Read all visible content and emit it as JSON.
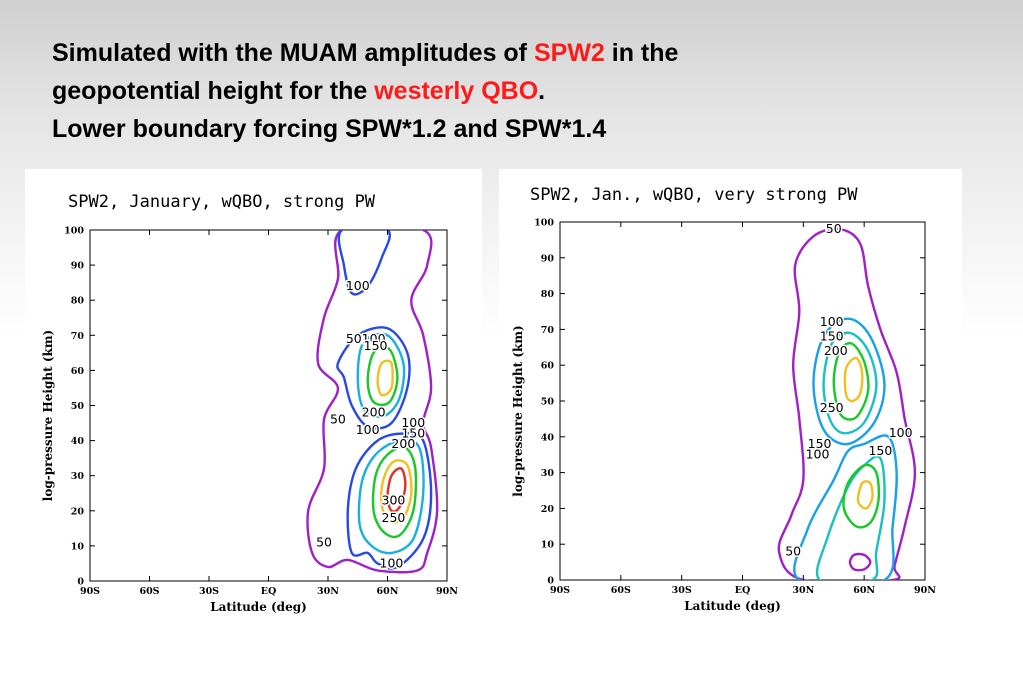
{
  "slide": {
    "title_line1_a": "Simulated with the MUAM amplitudes of ",
    "title_line1_b": "SPW2",
    "title_line1_c": " in the",
    "title_line2_a": "geopotential height for the ",
    "title_line2_b": "westerly QBO",
    "title_line2_c": ".",
    "title_line3": "Lower boundary forcing SPW*1.2 and SPW*1.4",
    "highlight_color": "#ff1a1a"
  },
  "chart_data": [
    {
      "type": "contour",
      "title": "SPW2, January, wQBO, strong PW",
      "xlabel": "Latitude (deg)",
      "ylabel": "log-pressure Height (km)",
      "x_ticks": [
        "90S",
        "60S",
        "30S",
        "EQ",
        "30N",
        "60N",
        "90N"
      ],
      "y_ticks": [
        "0",
        "10",
        "20",
        "30",
        "40",
        "50",
        "60",
        "70",
        "80",
        "90",
        "100"
      ],
      "xlim": [
        -90,
        90
      ],
      "ylim": [
        0,
        100
      ],
      "levels": [
        50,
        100,
        150,
        200,
        250,
        300
      ],
      "level_colors": {
        "50": "#a020c8",
        "100": "#2848e8",
        "150": "#18b0e0",
        "200": "#18c828",
        "250": "#f0c020",
        "300": "#e03020"
      },
      "contours": [
        {
          "level": 50,
          "points": [
            [
              22,
              8
            ],
            [
              20,
              20
            ],
            [
              28,
              32
            ],
            [
              28,
              46
            ],
            [
              35,
              55
            ],
            [
              25,
              62
            ],
            [
              28,
              75
            ],
            [
              35,
              86
            ],
            [
              37,
              100
            ],
            [
              78,
              100
            ],
            [
              80,
              90
            ],
            [
              72,
              80
            ],
            [
              78,
              70
            ],
            [
              82,
              55
            ],
            [
              78,
              45
            ],
            [
              82,
              38
            ],
            [
              85,
              20
            ],
            [
              80,
              8
            ],
            [
              75,
              3
            ],
            [
              55,
              3
            ],
            [
              40,
              6
            ],
            [
              30,
              4
            ]
          ]
        },
        {
          "level": 100,
          "points": [
            [
              37,
              100
            ],
            [
              38,
              90
            ],
            [
              42,
              82
            ],
            [
              50,
              84
            ],
            [
              57,
              92
            ],
            [
              60,
              100
            ]
          ]
        },
        {
          "level": 100,
          "points": [
            [
              38,
              58
            ],
            [
              35,
              62
            ],
            [
              45,
              70
            ],
            [
              60,
              72
            ],
            [
              70,
              65
            ],
            [
              70,
              55
            ],
            [
              62,
              45
            ],
            [
              50,
              44
            ],
            [
              42,
              50
            ]
          ]
        },
        {
          "level": 100,
          "points": [
            [
              42,
              8
            ],
            [
              40,
              20
            ],
            [
              44,
              32
            ],
            [
              55,
              40
            ],
            [
              68,
              42
            ],
            [
              78,
              40
            ],
            [
              82,
              25
            ],
            [
              78,
              12
            ],
            [
              65,
              4
            ],
            [
              55,
              5
            ],
            [
              50,
              8
            ]
          ]
        },
        {
          "level": 150,
          "points": [
            [
              45,
              58
            ],
            [
              48,
              68
            ],
            [
              60,
              70
            ],
            [
              68,
              62
            ],
            [
              66,
              52
            ],
            [
              58,
              47
            ],
            [
              48,
              49
            ]
          ]
        },
        {
          "level": 150,
          "points": [
            [
              46,
              16
            ],
            [
              47,
              28
            ],
            [
              54,
              36
            ],
            [
              66,
              40
            ],
            [
              76,
              38
            ],
            [
              78,
              25
            ],
            [
              73,
              12
            ],
            [
              62,
              8
            ],
            [
              52,
              10
            ]
          ]
        },
        {
          "level": 200,
          "points": [
            [
              50,
              57
            ],
            [
              53,
              65
            ],
            [
              61,
              66
            ],
            [
              65,
              58
            ],
            [
              61,
              51
            ],
            [
              53,
              51
            ]
          ]
        },
        {
          "level": 200,
          "points": [
            [
              53,
              20
            ],
            [
              54,
              30
            ],
            [
              60,
              36
            ],
            [
              69,
              38
            ],
            [
              74,
              32
            ],
            [
              73,
              20
            ],
            [
              66,
              13
            ],
            [
              58,
              14
            ]
          ]
        },
        {
          "level": 250,
          "points": [
            [
              55,
              57
            ],
            [
              57,
              62
            ],
            [
              62,
              62
            ],
            [
              62,
              55
            ],
            [
              57,
              53
            ]
          ]
        },
        {
          "level": 250,
          "points": [
            [
              57,
              22
            ],
            [
              58,
              29
            ],
            [
              63,
              34
            ],
            [
              70,
              33
            ],
            [
              72,
              25
            ],
            [
              68,
              18
            ],
            [
              61,
              17
            ]
          ]
        },
        {
          "level": 300,
          "points": [
            [
              60,
              24
            ],
            [
              62,
              30
            ],
            [
              67,
              32
            ],
            [
              69,
              27
            ],
            [
              66,
              21
            ],
            [
              62,
              20
            ]
          ]
        }
      ],
      "labels": [
        {
          "text": "100",
          "x": 45,
          "y": 84
        },
        {
          "text": "50",
          "x": 43,
          "y": 69
        },
        {
          "text": "100",
          "x": 53,
          "y": 69
        },
        {
          "text": "150",
          "x": 54,
          "y": 67
        },
        {
          "text": "50",
          "x": 35,
          "y": 46
        },
        {
          "text": "200",
          "x": 53,
          "y": 48
        },
        {
          "text": "100",
          "x": 50,
          "y": 43
        },
        {
          "text": "100",
          "x": 73,
          "y": 45
        },
        {
          "text": "150",
          "x": 73,
          "y": 42
        },
        {
          "text": "200",
          "x": 68,
          "y": 39
        },
        {
          "text": "300",
          "x": 63,
          "y": 23
        },
        {
          "text": "250",
          "x": 63,
          "y": 18
        },
        {
          "text": "50",
          "x": 28,
          "y": 11
        },
        {
          "text": "100",
          "x": 62,
          "y": 5
        }
      ]
    },
    {
      "type": "contour",
      "title": "SPW2, Jan., wQBO, very strong PW",
      "xlabel": "Latitude (deg)",
      "ylabel": "log-pressure Height (km)",
      "x_ticks": [
        "90S",
        "60S",
        "30S",
        "EQ",
        "30N",
        "60N",
        "90N"
      ],
      "y_ticks": [
        "0",
        "10",
        "20",
        "30",
        "40",
        "50",
        "60",
        "70",
        "80",
        "90",
        "100"
      ],
      "xlim": [
        -90,
        90
      ],
      "ylim": [
        0,
        100
      ],
      "levels": [
        50,
        100,
        150,
        200,
        250
      ],
      "level_colors": {
        "50": "#a020c8",
        "100": "#18a0e8",
        "150": "#18c0c0",
        "200": "#18c828",
        "250": "#f0c020",
        "300": "#e03020"
      },
      "contours": [
        {
          "level": 50,
          "points": [
            [
              30,
              0
            ],
            [
              18,
              8
            ],
            [
              24,
              18
            ],
            [
              30,
              28
            ],
            [
              28,
              45
            ],
            [
              25,
              60
            ],
            [
              28,
              75
            ],
            [
              26,
              88
            ],
            [
              35,
              96
            ],
            [
              48,
              98
            ],
            [
              58,
              94
            ],
            [
              62,
              82
            ],
            [
              68,
              70
            ],
            [
              76,
              58
            ],
            [
              80,
              45
            ],
            [
              85,
              30
            ],
            [
              80,
              15
            ],
            [
              75,
              4
            ],
            [
              74,
              0
            ]
          ]
        },
        {
          "level": 100,
          "points": [
            [
              28,
              0
            ],
            [
              32,
              14
            ],
            [
              45,
              28
            ],
            [
              52,
              36
            ],
            [
              60,
              38
            ],
            [
              72,
              40
            ],
            [
              76,
              30
            ],
            [
              74,
              15
            ],
            [
              70,
              0
            ]
          ]
        },
        {
          "level": 100,
          "points": [
            [
              40,
              42
            ],
            [
              35,
              55
            ],
            [
              40,
              68
            ],
            [
              52,
              73
            ],
            [
              63,
              68
            ],
            [
              70,
              55
            ],
            [
              65,
              44
            ],
            [
              52,
              38
            ]
          ]
        },
        {
          "level": 150,
          "points": [
            [
              43,
              45
            ],
            [
              40,
              55
            ],
            [
              44,
              66
            ],
            [
              53,
              69
            ],
            [
              62,
              64
            ],
            [
              66,
              54
            ],
            [
              60,
              44
            ],
            [
              50,
              41
            ]
          ]
        },
        {
          "level": 150,
          "points": [
            [
              38,
              0
            ],
            [
              42,
              12
            ],
            [
              52,
              26
            ],
            [
              60,
              32
            ],
            [
              68,
              34
            ],
            [
              70,
              22
            ],
            [
              66,
              8
            ],
            [
              64,
              0
            ]
          ]
        },
        {
          "level": 200,
          "points": [
            [
              47,
              48
            ],
            [
              45,
              56
            ],
            [
              48,
              64
            ],
            [
              54,
              66
            ],
            [
              60,
              61
            ],
            [
              62,
              53
            ],
            [
              57,
              46
            ],
            [
              51,
              45
            ]
          ]
        },
        {
          "level": 200,
          "points": [
            [
              50,
              20
            ],
            [
              52,
              27
            ],
            [
              60,
              32
            ],
            [
              66,
              30
            ],
            [
              67,
              22
            ],
            [
              63,
              16
            ],
            [
              56,
              15
            ]
          ]
        },
        {
          "level": 250,
          "points": [
            [
              51,
              52
            ],
            [
              51,
              59
            ],
            [
              56,
              62
            ],
            [
              59,
              58
            ],
            [
              58,
              52
            ],
            [
              54,
              50
            ]
          ]
        },
        {
          "level": 250,
          "points": [
            [
              57,
              22
            ],
            [
              59,
              27
            ],
            [
              63,
              27
            ],
            [
              64,
              23
            ],
            [
              61,
              20
            ]
          ]
        },
        {
          "level": 50,
          "points": [
            [
              53,
              5
            ],
            [
              55,
              7
            ],
            [
              60,
              7
            ],
            [
              63,
              5
            ],
            [
              60,
              3
            ],
            [
              55,
              3
            ]
          ]
        }
      ],
      "labels": [
        {
          "text": "50",
          "x": 45,
          "y": 98
        },
        {
          "text": "100",
          "x": 44,
          "y": 72
        },
        {
          "text": "150",
          "x": 44,
          "y": 68
        },
        {
          "text": "200",
          "x": 46,
          "y": 64
        },
        {
          "text": "250",
          "x": 44,
          "y": 48
        },
        {
          "text": "150",
          "x": 38,
          "y": 38
        },
        {
          "text": "100",
          "x": 37,
          "y": 35
        },
        {
          "text": "100",
          "x": 78,
          "y": 41
        },
        {
          "text": "150",
          "x": 68,
          "y": 36
        },
        {
          "text": "50",
          "x": 25,
          "y": 8
        }
      ]
    }
  ]
}
